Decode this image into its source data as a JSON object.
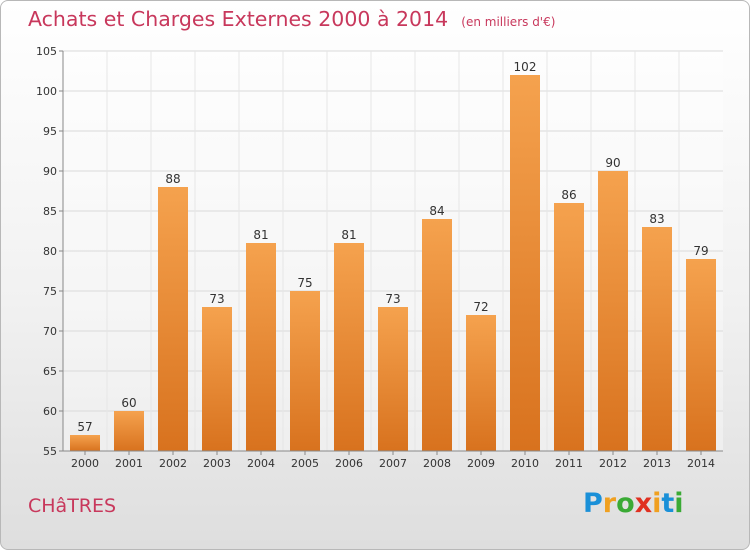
{
  "header": {
    "title": "Achats et Charges Externes 2000 à 2014",
    "subtitle": "(en milliers d'€)"
  },
  "commune": "CHâTRES",
  "logo": {
    "letters": [
      "P",
      "r",
      "o",
      "x",
      "i",
      "t",
      "i"
    ],
    "colors": [
      "#1a90d8",
      "#f0a020",
      "#3aaa35",
      "#e03020",
      "#f0a020",
      "#1a90d8",
      "#3aaa35"
    ]
  },
  "chart_data": {
    "type": "bar",
    "title": "Achats et Charges Externes 2000 à 2014",
    "subtitle": "(en milliers d'€)",
    "categories": [
      "2000",
      "2001",
      "2002",
      "2003",
      "2004",
      "2005",
      "2006",
      "2007",
      "2008",
      "2009",
      "2010",
      "2011",
      "2012",
      "2013",
      "2014"
    ],
    "values": [
      57,
      60,
      88,
      73,
      81,
      75,
      81,
      73,
      84,
      72,
      102,
      86,
      90,
      83,
      79
    ],
    "ylim": [
      55,
      105
    ],
    "yticks": [
      55,
      60,
      65,
      70,
      75,
      80,
      85,
      90,
      95,
      100,
      105
    ],
    "xlabel": "",
    "ylabel": "",
    "grid": true,
    "bar_color": "#f0913c"
  }
}
